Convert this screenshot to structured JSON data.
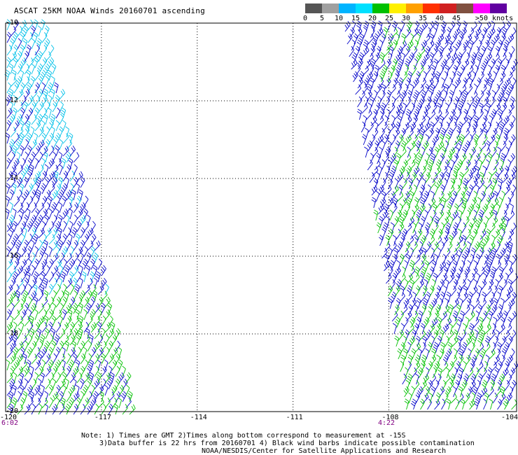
{
  "title": "ASCAT 25KM NOAA Winds 20160701 ascending",
  "legend": {
    "labels": [
      "0",
      "5",
      "10",
      "15",
      "20",
      "25",
      "30",
      "35",
      "40",
      "45",
      ">50 knots"
    ],
    "colors": [
      "#555555",
      "#a0a0a0",
      "#00b4ff",
      "#00e0ff",
      "#00c000",
      "#fff000",
      "#ffa000",
      "#ff3000",
      "#d02020",
      "#805040",
      "#ff00ff",
      "#6000a0"
    ]
  },
  "map": {
    "lat_labels": [
      "-10",
      "-12",
      "-14",
      "-16",
      "-18",
      "-20"
    ],
    "lon_labels": [
      "-120",
      "-117",
      "-114",
      "-111",
      "-108",
      "-104"
    ],
    "lat_range": [
      -20,
      -10
    ],
    "lon_range": [
      -120,
      -104
    ]
  },
  "times": {
    "left": "6:02",
    "right": "4:22"
  },
  "notes": {
    "line1": "Note: 1) Times are GMT 2)Times along bottom correspond to measurement at -15S",
    "line2": "3)Data buffer is 22 hrs from 20160701 4) Black wind barbs indicate possible contamination",
    "line3": "NOAA/NESDIS/Center for Satellite Applications and Research"
  },
  "barb_colors": {
    "light": "#00c0e8",
    "blue": "#0000c8",
    "green": "#00c000",
    "black": "#000000"
  }
}
